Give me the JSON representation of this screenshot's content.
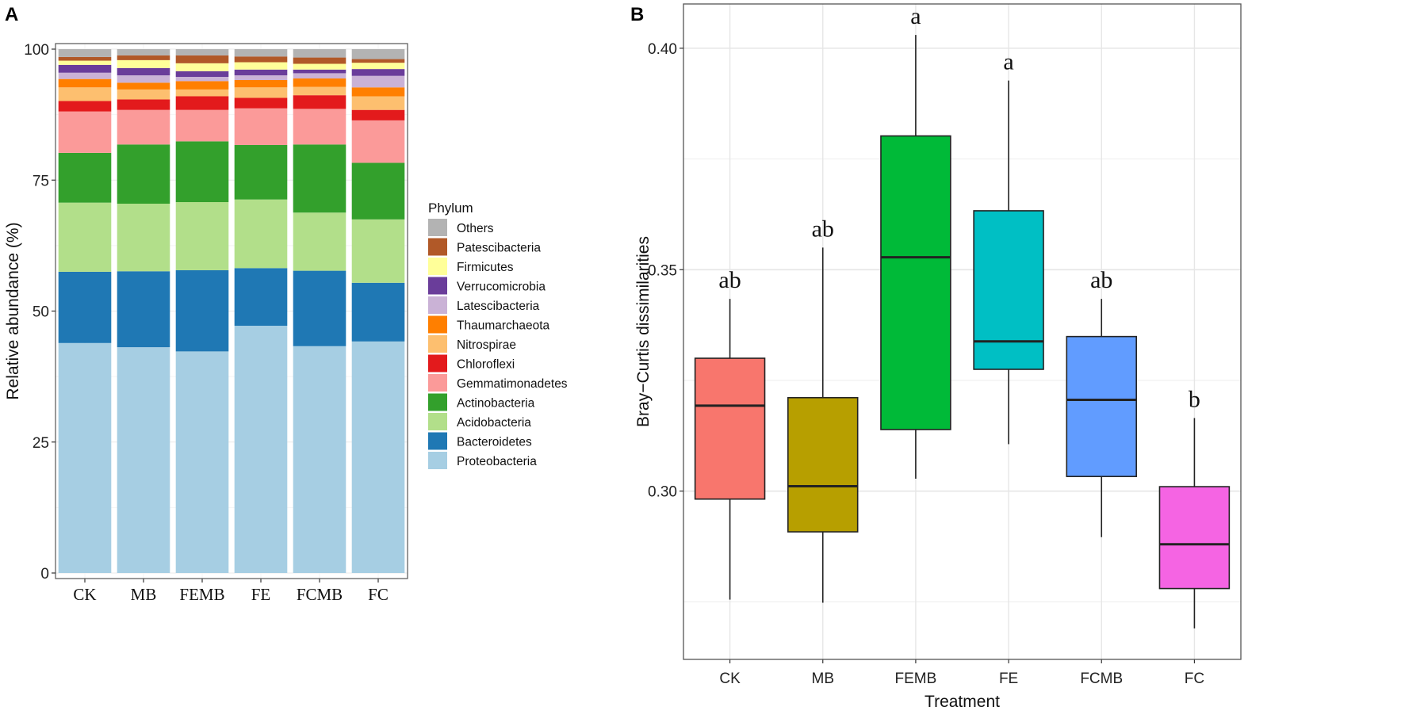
{
  "chart_data": [
    {
      "panel": "A",
      "type": "bar",
      "stacked": true,
      "ylabel": "Relative abundance (%)",
      "xlabel": "",
      "ylim": [
        0,
        100
      ],
      "yticks": [
        0,
        25,
        50,
        75,
        100
      ],
      "categories": [
        "CK",
        "MB",
        "FEMB",
        "FE",
        "FCMB",
        "FC"
      ],
      "legend_title": "Phylum",
      "legend_position": "right",
      "series": [
        {
          "name": "Proteobacteria",
          "color": "#a6cee3",
          "values": [
            43.9,
            43.1,
            42.3,
            47.2,
            43.3,
            44.2
          ]
        },
        {
          "name": "Bacteroidetes",
          "color": "#1f78b4",
          "values": [
            13.6,
            14.5,
            15.5,
            11.0,
            14.4,
            11.2
          ]
        },
        {
          "name": "Acidobacteria",
          "color": "#b2df8a",
          "values": [
            13.2,
            12.9,
            13.0,
            13.1,
            11.1,
            12.1
          ]
        },
        {
          "name": "Actinobacteria",
          "color": "#33a02c",
          "values": [
            9.5,
            11.3,
            11.6,
            10.4,
            13.0,
            10.8
          ]
        },
        {
          "name": "Gemmatimonadetes",
          "color": "#fb9a99",
          "values": [
            7.9,
            6.6,
            6.0,
            7.0,
            6.8,
            8.1
          ]
        },
        {
          "name": "Chloroflexi",
          "color": "#e31a1c",
          "values": [
            2.0,
            2.0,
            2.6,
            2.0,
            2.6,
            2.0
          ]
        },
        {
          "name": "Nitrospirae",
          "color": "#fdbf6f",
          "values": [
            2.6,
            1.9,
            1.3,
            2.0,
            1.6,
            2.6
          ]
        },
        {
          "name": "Thaumarchaeota",
          "color": "#ff7f00",
          "values": [
            1.6,
            1.3,
            1.6,
            1.4,
            1.6,
            1.7
          ]
        },
        {
          "name": "Latescibacteria",
          "color": "#cab2d6",
          "values": [
            1.2,
            1.4,
            0.8,
            0.9,
            1.0,
            2.2
          ]
        },
        {
          "name": "Verrucomicrobia",
          "color": "#6a3d9a",
          "values": [
            1.5,
            1.4,
            1.1,
            1.1,
            0.7,
            1.3
          ]
        },
        {
          "name": "Firmicutes",
          "color": "#ffff99",
          "values": [
            0.8,
            1.5,
            1.5,
            1.4,
            1.1,
            1.2
          ]
        },
        {
          "name": "Patescibacteria",
          "color": "#b15928",
          "values": [
            0.7,
            0.9,
            1.5,
            1.1,
            1.2,
            0.7
          ]
        },
        {
          "name": "Others",
          "color": "#b3b3b3",
          "values": [
            1.5,
            1.2,
            1.2,
            1.4,
            1.6,
            1.9
          ]
        }
      ]
    },
    {
      "panel": "B",
      "type": "box",
      "xlabel": "Treatment",
      "ylabel": "Bray−Curtis dissimilarities",
      "ylim": [
        0.262,
        0.41
      ],
      "yticks": [
        "0.30",
        "0.35",
        "0.40"
      ],
      "ytick_values": [
        0.3,
        0.35,
        0.4
      ],
      "minor_grid": [
        0.275,
        0.325,
        0.375
      ],
      "grid": true,
      "categories": [
        "CK",
        "MB",
        "FEMB",
        "FE",
        "FCMB",
        "FC"
      ],
      "boxes": [
        {
          "name": "CK",
          "color": "#f8766d",
          "min": 0.2755,
          "q1": 0.2982,
          "median": 0.3193,
          "q3": 0.33,
          "max": 0.3434,
          "letter": "ab"
        },
        {
          "name": "MB",
          "color": "#b79f00",
          "min": 0.2748,
          "q1": 0.2908,
          "median": 0.3011,
          "q3": 0.3211,
          "max": 0.355,
          "letter": "ab"
        },
        {
          "name": "FEMB",
          "color": "#00ba38",
          "min": 0.3028,
          "q1": 0.3139,
          "median": 0.3528,
          "q3": 0.3802,
          "max": 0.403,
          "letter": "a"
        },
        {
          "name": "FE",
          "color": "#00bfc4",
          "min": 0.3106,
          "q1": 0.3275,
          "median": 0.3338,
          "q3": 0.3633,
          "max": 0.3927,
          "letter": "a"
        },
        {
          "name": "FCMB",
          "color": "#619cff",
          "min": 0.2896,
          "q1": 0.3033,
          "median": 0.3206,
          "q3": 0.3349,
          "max": 0.3434,
          "letter": "ab"
        },
        {
          "name": "FC",
          "color": "#f564e3",
          "min": 0.269,
          "q1": 0.278,
          "median": 0.288,
          "q3": 0.301,
          "max": 0.3165,
          "letter": "b"
        }
      ]
    }
  ],
  "panel_labels": {
    "a": "A",
    "b": "B"
  }
}
